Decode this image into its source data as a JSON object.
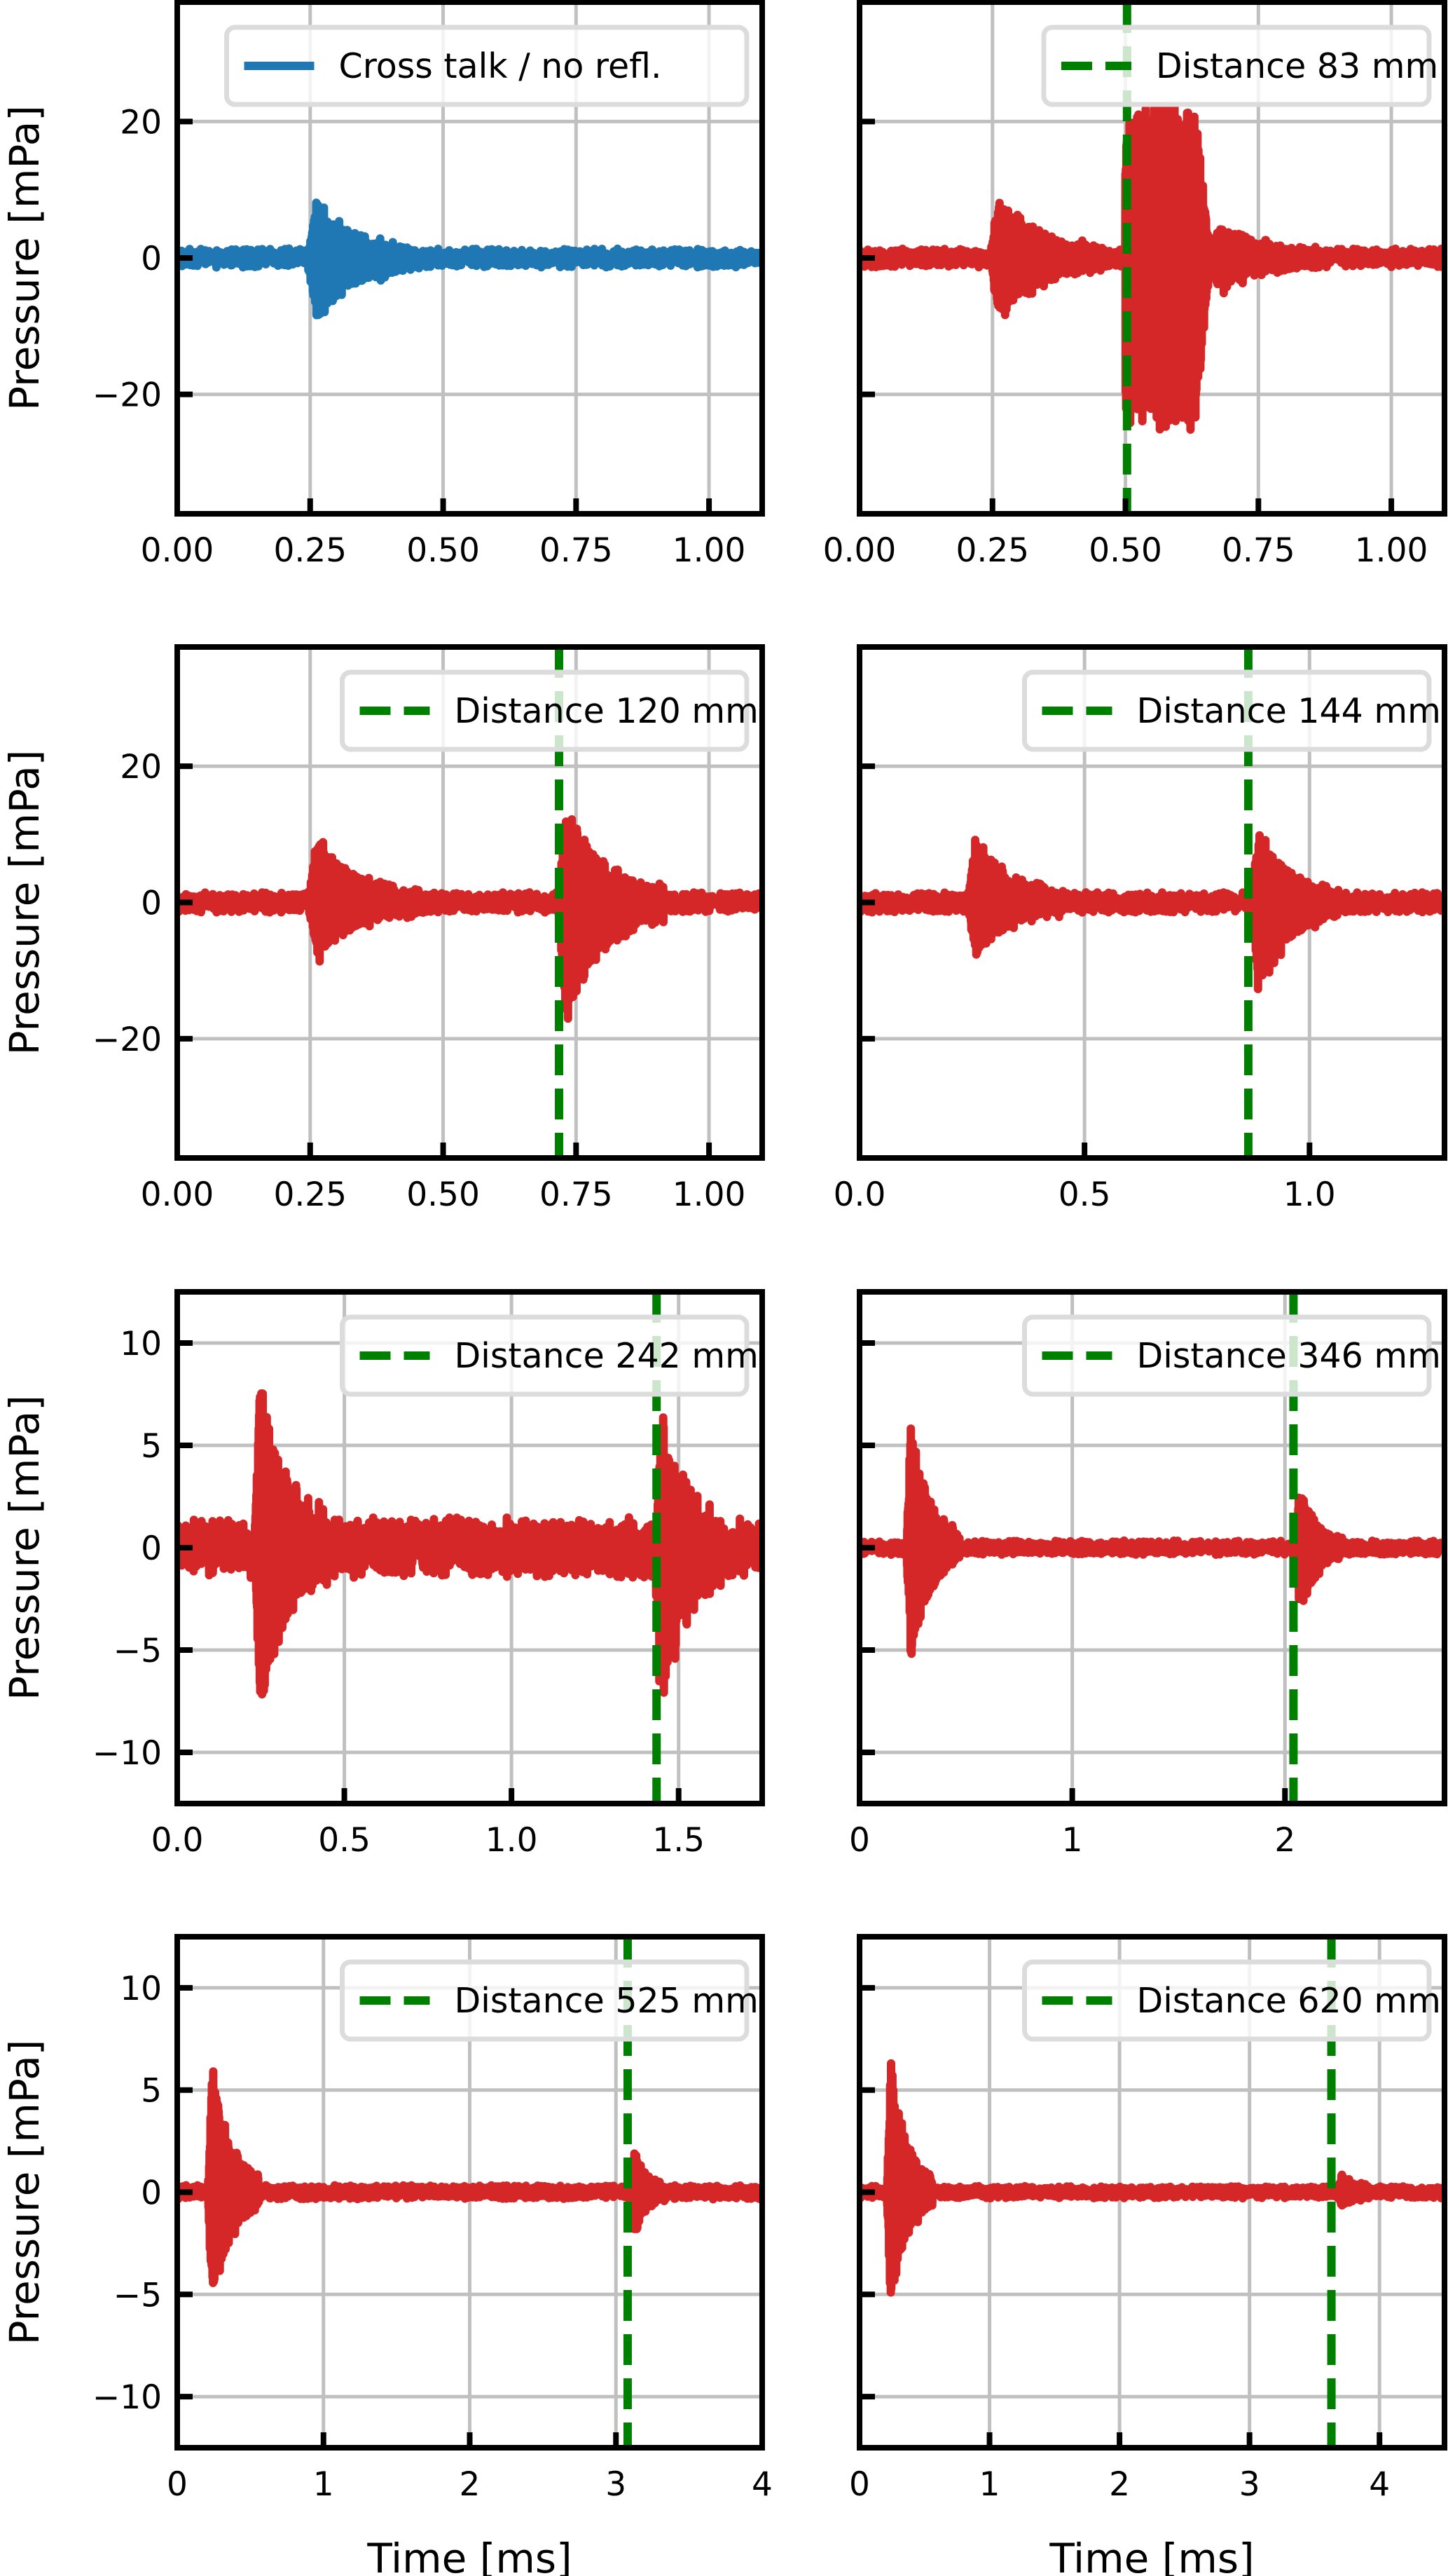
{
  "figure": {
    "ylabel": "Pressure [mPa]",
    "xlabel": "Time [ms]"
  },
  "colors": {
    "crosstalk": "#1f77b4",
    "signal": "#d62728",
    "marker": "#008000",
    "grid": "#c0c0c0",
    "frame": "#000000",
    "legend_border": "#dcdcdc"
  },
  "chart_data": [
    {
      "type": "line",
      "panel": "row1-left",
      "legend": "Cross talk / no refl.",
      "legend_style": "solid",
      "series_color": "crosstalk",
      "xlim": [
        0,
        1.1
      ],
      "ylim": [
        -37.5,
        37.5
      ],
      "xticks": [
        "0.00",
        "0.25",
        "0.50",
        "0.75",
        "1.00"
      ],
      "xtick_values": [
        0,
        0.25,
        0.5,
        0.75,
        1.0
      ],
      "yticks": [
        "20",
        "0",
        "−20"
      ],
      "ytick_values": [
        20,
        0,
        -20
      ],
      "show_ylabel": true,
      "show_xlabel": false,
      "marker_time_ms": null,
      "noise_amplitude": 1.4,
      "bursts": [
        {
          "onset_ms": 0.245,
          "peak_pos": 8.0,
          "peak_neg": -9.0,
          "duration_ms": 0.21
        }
      ]
    },
    {
      "type": "line",
      "panel": "row1-right",
      "legend": "Distance 83 mm",
      "legend_style": "dashed",
      "series_color": "signal",
      "xlim": [
        0,
        1.1
      ],
      "ylim": [
        -37.5,
        37.5
      ],
      "xticks": [
        "0.00",
        "0.25",
        "0.50",
        "0.75",
        "1.00"
      ],
      "xtick_values": [
        0,
        0.25,
        0.5,
        0.75,
        1.0
      ],
      "yticks": [],
      "ytick_values": [
        20,
        0,
        -20
      ],
      "show_ylabel": false,
      "show_xlabel": false,
      "marker_time_ms": 0.503,
      "noise_amplitude": 1.4,
      "bursts": [
        {
          "onset_ms": 0.245,
          "peak_pos": 8.5,
          "peak_neg": -8.5,
          "duration_ms": 0.22
        },
        {
          "onset_ms": 0.5,
          "peak_pos": 23.0,
          "peak_neg": -26.0,
          "duration_ms": 0.16,
          "plateau": true
        },
        {
          "onset_ms": 0.66,
          "peak_pos": 4.5,
          "peak_neg": -4.5,
          "duration_ms": 0.2
        }
      ]
    },
    {
      "type": "line",
      "panel": "row2-left",
      "legend": "Distance 120 mm",
      "legend_style": "dashed",
      "series_color": "signal",
      "xlim": [
        0,
        1.1
      ],
      "ylim": [
        -37.5,
        37.5
      ],
      "xticks": [
        "0.00",
        "0.25",
        "0.50",
        "0.75",
        "1.00"
      ],
      "xtick_values": [
        0,
        0.25,
        0.5,
        0.75,
        1.0
      ],
      "yticks": [
        "20",
        "0",
        "−20"
      ],
      "ytick_values": [
        20,
        0,
        -20
      ],
      "show_ylabel": true,
      "show_xlabel": false,
      "marker_time_ms": 0.718,
      "noise_amplitude": 1.5,
      "bursts": [
        {
          "onset_ms": 0.245,
          "peak_pos": 9.0,
          "peak_neg": -8.0,
          "duration_ms": 0.22
        },
        {
          "onset_ms": 0.715,
          "peak_pos": 14.0,
          "peak_neg": -17.0,
          "duration_ms": 0.2
        }
      ]
    },
    {
      "type": "line",
      "panel": "row2-right",
      "legend": "Distance 144 mm",
      "legend_style": "dashed",
      "series_color": "signal",
      "xlim": [
        0,
        1.3
      ],
      "ylim": [
        -37.5,
        37.5
      ],
      "xticks": [
        "0.0",
        "0.5",
        "1.0"
      ],
      "xtick_values": [
        0,
        0.5,
        1.0
      ],
      "yticks": [],
      "ytick_values": [
        20,
        0,
        -20
      ],
      "show_ylabel": false,
      "show_xlabel": false,
      "marker_time_ms": 0.864,
      "noise_amplitude": 1.5,
      "bursts": [
        {
          "onset_ms": 0.24,
          "peak_pos": 9.0,
          "peak_neg": -7.5,
          "duration_ms": 0.22
        },
        {
          "onset_ms": 0.87,
          "peak_pos": 10.0,
          "peak_neg": -13.0,
          "duration_ms": 0.2
        }
      ]
    },
    {
      "type": "line",
      "panel": "row3-left",
      "legend": "Distance 242 mm",
      "legend_style": "dashed",
      "series_color": "signal",
      "xlim": [
        0,
        1.75
      ],
      "ylim": [
        -12.5,
        12.5
      ],
      "xticks": [
        "0.0",
        "0.5",
        "1.0",
        "1.5"
      ],
      "xtick_values": [
        0,
        0.5,
        1.0,
        1.5
      ],
      "yticks": [
        "10",
        "5",
        "0",
        "−5",
        "−10"
      ],
      "ytick_values": [
        10,
        5,
        0,
        -5,
        -10
      ],
      "show_ylabel": true,
      "show_xlabel": false,
      "marker_time_ms": 1.434,
      "noise_amplitude": 1.5,
      "bursts": [
        {
          "onset_ms": 0.23,
          "peak_pos": 8.0,
          "peak_neg": -7.7,
          "duration_ms": 0.22
        },
        {
          "onset_ms": 1.43,
          "peak_pos": 6.3,
          "peak_neg": -7.2,
          "duration_ms": 0.2
        }
      ]
    },
    {
      "type": "line",
      "panel": "row3-right",
      "legend": "Distance 346 mm",
      "legend_style": "dashed",
      "series_color": "signal",
      "xlim": [
        0,
        2.75
      ],
      "ylim": [
        -12.5,
        12.5
      ],
      "xticks": [
        "0",
        "1",
        "2"
      ],
      "xtick_values": [
        0,
        1,
        2
      ],
      "yticks": [],
      "ytick_values": [
        10,
        5,
        0,
        -5,
        -10
      ],
      "show_ylabel": false,
      "show_xlabel": false,
      "marker_time_ms": 2.04,
      "noise_amplitude": 0.35,
      "bursts": [
        {
          "onset_ms": 0.22,
          "peak_pos": 6.0,
          "peak_neg": -5.5,
          "duration_ms": 0.25
        },
        {
          "onset_ms": 2.05,
          "peak_pos": 3.0,
          "peak_neg": -3.2,
          "duration_ms": 0.22
        }
      ]
    },
    {
      "type": "line",
      "panel": "row4-left",
      "legend": "Distance 525 mm",
      "legend_style": "dashed",
      "series_color": "signal",
      "xlim": [
        0,
        4
      ],
      "ylim": [
        -12.5,
        12.5
      ],
      "xticks": [
        "0",
        "1",
        "2",
        "3",
        "4"
      ],
      "xtick_values": [
        0,
        1,
        2,
        3,
        4
      ],
      "yticks": [
        "10",
        "5",
        "0",
        "−5",
        "−10"
      ],
      "ytick_values": [
        10,
        5,
        0,
        -5,
        -10
      ],
      "show_ylabel": true,
      "show_xlabel": true,
      "marker_time_ms": 3.08,
      "noise_amplitude": 0.35,
      "bursts": [
        {
          "onset_ms": 0.21,
          "peak_pos": 6.3,
          "peak_neg": -5.7,
          "duration_ms": 0.35
        },
        {
          "onset_ms": 3.1,
          "peak_pos": 2.0,
          "peak_neg": -2.1,
          "duration_ms": 0.25
        }
      ]
    },
    {
      "type": "line",
      "panel": "row4-right",
      "legend": "Distance 620 mm",
      "legend_style": "dashed",
      "series_color": "signal",
      "xlim": [
        0,
        4.5
      ],
      "ylim": [
        -12.5,
        12.5
      ],
      "xticks": [
        "0",
        "1",
        "2",
        "3",
        "4"
      ],
      "xtick_values": [
        0,
        1,
        2,
        3,
        4
      ],
      "yticks": [],
      "ytick_values": [
        10,
        5,
        0,
        -5,
        -10
      ],
      "show_ylabel": false,
      "show_xlabel": true,
      "marker_time_ms": 3.63,
      "noise_amplitude": 0.3,
      "bursts": [
        {
          "onset_ms": 0.21,
          "peak_pos": 6.5,
          "peak_neg": -5.6,
          "duration_ms": 0.35
        },
        {
          "onset_ms": 3.68,
          "peak_pos": 0.8,
          "peak_neg": -0.6,
          "duration_ms": 0.3
        }
      ]
    }
  ]
}
